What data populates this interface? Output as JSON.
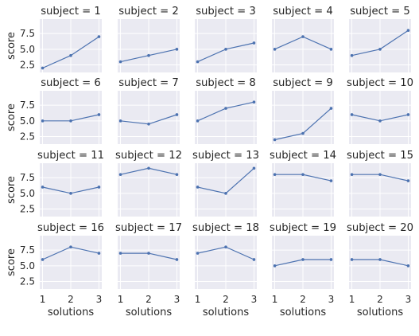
{
  "chart_data": {
    "type": "line",
    "layout": "facet-grid 4 rows x 5 columns",
    "xlabel": "solutions",
    "ylabel": "score",
    "x": [
      1,
      2,
      3
    ],
    "xticks": [
      "1",
      "2",
      "3"
    ],
    "yticks": [
      "2.5",
      "5.0",
      "7.5"
    ],
    "ylim": [
      1.3,
      9.8
    ],
    "xlim": [
      0.9,
      3.1
    ],
    "grid": true,
    "background_color": "#eaeaf2",
    "line_color": "#4c72b0",
    "facets": [
      {
        "title": "subject = 1",
        "values": [
          2,
          4,
          7
        ]
      },
      {
        "title": "subject = 2",
        "values": [
          3,
          4,
          5
        ]
      },
      {
        "title": "subject = 3",
        "values": [
          3,
          5,
          6
        ]
      },
      {
        "title": "subject = 4",
        "values": [
          5,
          7,
          5
        ]
      },
      {
        "title": "subject = 5",
        "values": [
          4,
          5,
          8
        ]
      },
      {
        "title": "subject = 6",
        "values": [
          5,
          5,
          6
        ]
      },
      {
        "title": "subject = 7",
        "values": [
          5,
          4.5,
          6
        ]
      },
      {
        "title": "subject = 8",
        "values": [
          5,
          7,
          8
        ]
      },
      {
        "title": "subject = 9",
        "values": [
          2,
          3,
          7
        ]
      },
      {
        "title": "subject = 10",
        "values": [
          6,
          5,
          6
        ]
      },
      {
        "title": "subject = 11",
        "values": [
          6,
          5,
          6
        ]
      },
      {
        "title": "subject = 12",
        "values": [
          8,
          9,
          8
        ]
      },
      {
        "title": "subject = 13",
        "values": [
          6,
          5,
          9
        ]
      },
      {
        "title": "subject = 14",
        "values": [
          8,
          8,
          7
        ]
      },
      {
        "title": "subject = 15",
        "values": [
          8,
          8,
          7
        ]
      },
      {
        "title": "subject = 16",
        "values": [
          6,
          8,
          7
        ]
      },
      {
        "title": "subject = 17",
        "values": [
          7,
          7,
          6
        ]
      },
      {
        "title": "subject = 18",
        "values": [
          7,
          8,
          6
        ]
      },
      {
        "title": "subject = 19",
        "values": [
          5,
          6,
          6
        ]
      },
      {
        "title": "subject = 20",
        "values": [
          6,
          6,
          5
        ]
      }
    ]
  }
}
